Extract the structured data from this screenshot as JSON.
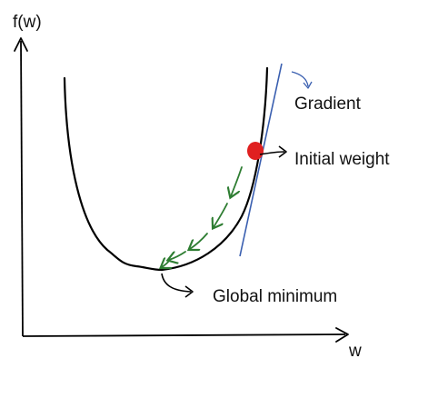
{
  "labels": {
    "y_axis": "f(w)",
    "x_axis": "w",
    "gradient": "Gradient",
    "initial_weight": "Initial weight",
    "global_minimum": "Global minimum"
  },
  "colors": {
    "ink": "#000000",
    "tangent_line": "#3a5fb0",
    "descent_steps": "#2e7d32",
    "initial_point": "#e02020"
  },
  "descent_step_count": 5
}
